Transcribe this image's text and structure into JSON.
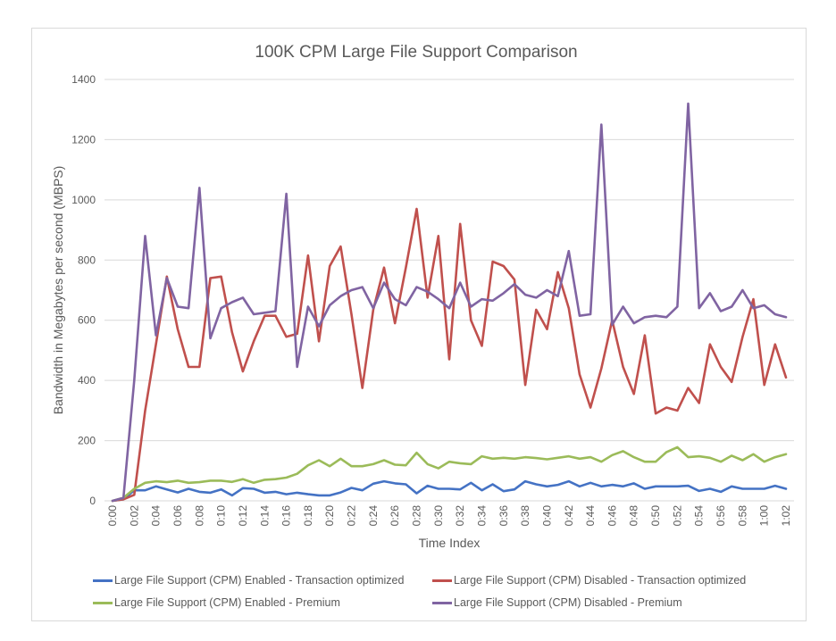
{
  "chart_data": {
    "type": "line",
    "title": "100K CPM Large File Support Comparison",
    "xlabel": "Time Index",
    "ylabel": "Bandwidth in Megabytes per second (MBPS)",
    "ylim": [
      0,
      1400
    ],
    "yticks": [
      0,
      200,
      400,
      600,
      800,
      1000,
      1200,
      1400
    ],
    "grid": "horizontal",
    "legend_position": "bottom",
    "x": [
      "0:00",
      "0:01",
      "0:02",
      "0:03",
      "0:04",
      "0:05",
      "0:06",
      "0:07",
      "0:08",
      "0:09",
      "0:10",
      "0:11",
      "0:12",
      "0:13",
      "0:14",
      "0:15",
      "0:16",
      "0:17",
      "0:18",
      "0:19",
      "0:20",
      "0:21",
      "0:22",
      "0:23",
      "0:24",
      "0:25",
      "0:26",
      "0:27",
      "0:28",
      "0:29",
      "0:30",
      "0:31",
      "0:32",
      "0:33",
      "0:34",
      "0:35",
      "0:36",
      "0:37",
      "0:38",
      "0:39",
      "0:40",
      "0:41",
      "0:42",
      "0:43",
      "0:44",
      "0:45",
      "0:46",
      "0:47",
      "0:48",
      "0:49",
      "0:50",
      "0:51",
      "0:52",
      "0:53",
      "0:54",
      "0:55",
      "0:56",
      "0:57",
      "0:58",
      "0:59",
      "1:00",
      "1:01",
      "1:02"
    ],
    "x_tick_labels": [
      "0:00",
      "0:02",
      "0:04",
      "0:06",
      "0:08",
      "0:10",
      "0:12",
      "0:14",
      "0:16",
      "0:18",
      "0:20",
      "0:22",
      "0:24",
      "0:26",
      "0:28",
      "0:30",
      "0:32",
      "0:34",
      "0:36",
      "0:38",
      "0:40",
      "0:42",
      "0:44",
      "0:46",
      "0:48",
      "0:50",
      "0:52",
      "0:54",
      "0:56",
      "0:58",
      "1:00",
      "1:02"
    ],
    "series": [
      {
        "name": "Large File Support (CPM) Enabled - Transaction optimized",
        "color": "#4472C4",
        "values": [
          0,
          5,
          35,
          35,
          48,
          38,
          28,
          40,
          30,
          27,
          38,
          18,
          42,
          40,
          27,
          30,
          22,
          27,
          22,
          18,
          18,
          28,
          43,
          35,
          57,
          65,
          58,
          55,
          25,
          50,
          40,
          40,
          38,
          60,
          35,
          55,
          32,
          38,
          65,
          55,
          48,
          53,
          65,
          48,
          60,
          48,
          53,
          48,
          58,
          40,
          48,
          48,
          48,
          50,
          33,
          40,
          30,
          48,
          40,
          40,
          40,
          50,
          40
        ]
      },
      {
        "name": "Large File Support (CPM) Disabled - Transaction optimized",
        "color": "#C0504D",
        "values": [
          0,
          5,
          20,
          300,
          520,
          745,
          570,
          445,
          445,
          740,
          745,
          560,
          430,
          530,
          615,
          615,
          545,
          555,
          815,
          530,
          780,
          845,
          620,
          375,
          635,
          775,
          590,
          775,
          970,
          675,
          880,
          470,
          920,
          600,
          515,
          795,
          780,
          735,
          385,
          635,
          570,
          760,
          640,
          420,
          310,
          440,
          600,
          445,
          355,
          550,
          290,
          310,
          300,
          375,
          325,
          520,
          445,
          395,
          545,
          670,
          385,
          520,
          410
        ]
      },
      {
        "name": "Large File Support (CPM) Enabled - Premium",
        "color": "#9BBB59",
        "values": [
          0,
          10,
          40,
          60,
          65,
          62,
          67,
          60,
          62,
          67,
          67,
          63,
          72,
          60,
          70,
          72,
          77,
          90,
          118,
          135,
          115,
          140,
          115,
          115,
          122,
          135,
          120,
          118,
          160,
          122,
          108,
          130,
          125,
          122,
          148,
          140,
          143,
          140,
          145,
          142,
          138,
          143,
          148,
          140,
          145,
          130,
          152,
          165,
          145,
          130,
          130,
          162,
          178,
          145,
          148,
          143,
          130,
          150,
          135,
          155,
          130,
          145,
          155
        ]
      },
      {
        "name": "Large File Support (CPM) Disabled - Premium",
        "color": "#8064A2",
        "values": [
          0,
          10,
          400,
          880,
          550,
          740,
          645,
          640,
          1040,
          540,
          640,
          660,
          675,
          620,
          625,
          630,
          1020,
          445,
          645,
          580,
          650,
          680,
          700,
          710,
          640,
          725,
          670,
          650,
          710,
          695,
          670,
          640,
          725,
          645,
          670,
          665,
          690,
          720,
          685,
          675,
          700,
          680,
          830,
          615,
          620,
          1250,
          585,
          645,
          590,
          610,
          615,
          610,
          645,
          1320,
          640,
          690,
          630,
          645,
          700,
          640,
          650,
          620,
          610
        ]
      }
    ]
  }
}
